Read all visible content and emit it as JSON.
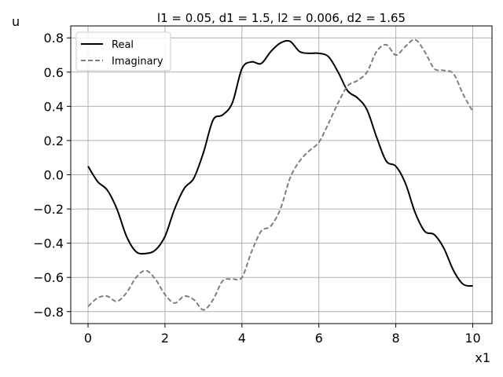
{
  "chart_data": {
    "type": "line",
    "title": "l1 = 0.05, d1 = 1.5, l2 = 0.006, d2 = 1.65",
    "xlabel": "x1",
    "ylabel": "u",
    "xlim": [
      -0.45,
      10.5
    ],
    "ylim": [
      -0.87,
      0.87
    ],
    "xticks": [
      0,
      2,
      4,
      6,
      8,
      10
    ],
    "yticks": [
      -0.8,
      -0.6,
      -0.4,
      -0.2,
      0.0,
      0.2,
      0.4,
      0.6,
      0.8
    ],
    "ytick_labels": [
      "−0.8",
      "−0.6",
      "−0.4",
      "−0.2",
      "0.0",
      "0.2",
      "0.4",
      "0.6",
      "0.8"
    ],
    "grid": true,
    "legend_position": "top-left",
    "series": [
      {
        "name": "Real",
        "color": "#000000",
        "style": "solid",
        "x": [
          0,
          0.25,
          0.5,
          0.75,
          1.0,
          1.25,
          1.5,
          1.75,
          2.0,
          2.25,
          2.5,
          2.75,
          3.0,
          3.25,
          3.5,
          3.75,
          4.0,
          4.25,
          4.5,
          4.75,
          5.0,
          5.25,
          5.5,
          5.75,
          6.0,
          6.25,
          6.5,
          6.75,
          7.0,
          7.25,
          7.5,
          7.75,
          8.0,
          8.25,
          8.5,
          8.75,
          9.0,
          9.25,
          9.5,
          9.75,
          10.0
        ],
        "values": [
          0.05,
          -0.04,
          -0.09,
          -0.2,
          -0.36,
          -0.45,
          -0.46,
          -0.44,
          -0.36,
          -0.2,
          -0.08,
          -0.02,
          0.13,
          0.32,
          0.35,
          0.42,
          0.62,
          0.66,
          0.65,
          0.72,
          0.77,
          0.78,
          0.72,
          0.71,
          0.71,
          0.69,
          0.6,
          0.49,
          0.45,
          0.38,
          0.22,
          0.08,
          0.05,
          -0.05,
          -0.22,
          -0.33,
          -0.35,
          -0.43,
          -0.56,
          -0.64,
          -0.65
        ]
      },
      {
        "name": "Imaginary",
        "color": "#7f7f7f",
        "style": "dashed",
        "x": [
          0,
          0.25,
          0.5,
          0.75,
          1.0,
          1.25,
          1.5,
          1.75,
          2.0,
          2.25,
          2.5,
          2.75,
          3.0,
          3.25,
          3.5,
          3.75,
          4.0,
          4.25,
          4.5,
          4.75,
          5.0,
          5.25,
          5.5,
          5.75,
          6.0,
          6.25,
          6.5,
          6.75,
          7.0,
          7.25,
          7.5,
          7.75,
          8.0,
          8.25,
          8.5,
          8.75,
          9.0,
          9.25,
          9.5,
          9.75,
          10.0
        ],
        "values": [
          -0.77,
          -0.72,
          -0.71,
          -0.74,
          -0.69,
          -0.6,
          -0.56,
          -0.61,
          -0.7,
          -0.75,
          -0.71,
          -0.73,
          -0.79,
          -0.73,
          -0.62,
          -0.61,
          -0.6,
          -0.45,
          -0.33,
          -0.3,
          -0.2,
          -0.02,
          0.08,
          0.14,
          0.19,
          0.3,
          0.42,
          0.52,
          0.55,
          0.6,
          0.72,
          0.76,
          0.7,
          0.75,
          0.79,
          0.72,
          0.62,
          0.61,
          0.59,
          0.47,
          0.37
        ]
      }
    ]
  }
}
